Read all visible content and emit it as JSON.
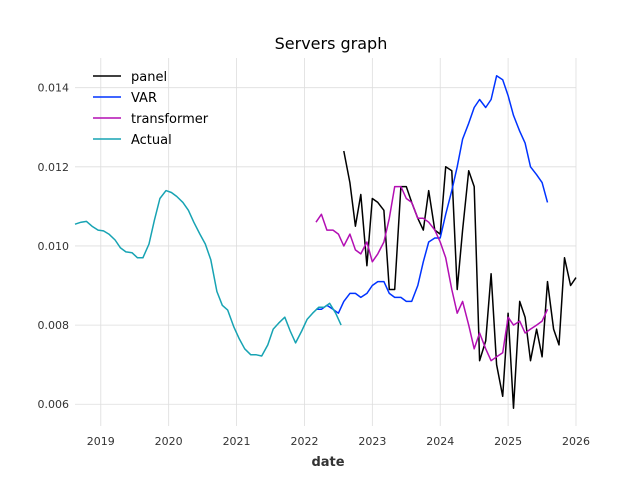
{
  "chart_data": {
    "type": "line",
    "title": "Servers graph",
    "xlabel": "date",
    "ylabel": "",
    "xlim": [
      2018.62,
      2026.0
    ],
    "ylim": [
      0.00545,
      0.01475
    ],
    "x_ticks": [
      2019,
      2020,
      2021,
      2022,
      2023,
      2024,
      2025,
      2026
    ],
    "x_tick_labels": [
      "2019",
      "2020",
      "2021",
      "2022",
      "2023",
      "2024",
      "2025",
      "2026"
    ],
    "y_ticks": [
      0.006,
      0.008,
      0.01,
      0.012,
      0.014
    ],
    "y_tick_labels": [
      "0.006",
      "0.008",
      "0.010",
      "0.012",
      "0.014"
    ],
    "grid": true,
    "legend_position": "top-left",
    "series": [
      {
        "name": "panel",
        "color": "#000000",
        "x": [
          2022.58,
          2022.67,
          2022.75,
          2022.83,
          2022.92,
          2023.0,
          2023.08,
          2023.17,
          2023.25,
          2023.33,
          2023.42,
          2023.5,
          2023.58,
          2023.67,
          2023.75,
          2023.83,
          2023.92,
          2024.0,
          2024.08,
          2024.17,
          2024.25,
          2024.33,
          2024.42,
          2024.5,
          2024.58,
          2024.67,
          2024.75,
          2024.83,
          2024.92,
          2025.0,
          2025.08,
          2025.17,
          2025.25,
          2025.33,
          2025.42,
          2025.5,
          2025.58,
          2025.67,
          2025.75,
          2025.83,
          2025.92,
          2026.0
        ],
        "values": [
          0.0124,
          0.0116,
          0.0105,
          0.0113,
          0.0095,
          0.0112,
          0.0111,
          0.0109,
          0.0089,
          0.0089,
          0.0115,
          0.0115,
          0.0111,
          0.0107,
          0.0104,
          0.0114,
          0.0104,
          0.0103,
          0.012,
          0.0119,
          0.0089,
          0.0104,
          0.0119,
          0.0115,
          0.0071,
          0.0076,
          0.0093,
          0.007,
          0.0062,
          0.0083,
          0.0059,
          0.0086,
          0.0082,
          0.0071,
          0.0079,
          0.0072,
          0.0091,
          0.0079,
          0.0075,
          0.0097,
          0.009,
          0.0092
        ]
      },
      {
        "name": "VAR",
        "color": "#0033ff",
        "x": [
          2022.17,
          2022.25,
          2022.33,
          2022.42,
          2022.5,
          2022.58,
          2022.67,
          2022.75,
          2022.83,
          2022.92,
          2023.0,
          2023.08,
          2023.17,
          2023.25,
          2023.33,
          2023.42,
          2023.5,
          2023.58,
          2023.67,
          2023.75,
          2023.83,
          2023.92,
          2024.0,
          2024.08,
          2024.17,
          2024.25,
          2024.33,
          2024.42,
          2024.5,
          2024.58,
          2024.67,
          2024.75,
          2024.83,
          2024.92,
          2025.0,
          2025.08,
          2025.17,
          2025.25,
          2025.33,
          2025.42,
          2025.5,
          2025.58
        ],
        "values": [
          0.0084,
          0.0084,
          0.0085,
          0.0084,
          0.0083,
          0.0086,
          0.0088,
          0.0088,
          0.0087,
          0.0088,
          0.009,
          0.0091,
          0.0091,
          0.0088,
          0.0087,
          0.0087,
          0.0086,
          0.0086,
          0.009,
          0.0096,
          0.0101,
          0.0102,
          0.0102,
          0.0108,
          0.0114,
          0.012,
          0.0127,
          0.0131,
          0.0135,
          0.0137,
          0.0135,
          0.0137,
          0.0143,
          0.0142,
          0.0138,
          0.0133,
          0.0129,
          0.0126,
          0.012,
          0.0118,
          0.0116,
          0.0111
        ]
      },
      {
        "name": "transformer",
        "color": "#b30fb3",
        "x": [
          2022.17,
          2022.25,
          2022.33,
          2022.42,
          2022.5,
          2022.58,
          2022.67,
          2022.75,
          2022.83,
          2022.92,
          2023.0,
          2023.08,
          2023.17,
          2023.25,
          2023.33,
          2023.42,
          2023.5,
          2023.58,
          2023.67,
          2023.75,
          2023.83,
          2023.92,
          2024.0,
          2024.08,
          2024.17,
          2024.25,
          2024.33,
          2024.42,
          2024.5,
          2024.58,
          2024.67,
          2024.75,
          2024.83,
          2024.92,
          2025.0,
          2025.08,
          2025.17,
          2025.25,
          2025.33,
          2025.42,
          2025.5,
          2025.58
        ],
        "values": [
          0.0106,
          0.0108,
          0.0104,
          0.0104,
          0.0103,
          0.01,
          0.0103,
          0.0099,
          0.0098,
          0.0101,
          0.0096,
          0.0098,
          0.0101,
          0.0107,
          0.0115,
          0.0115,
          0.0112,
          0.0111,
          0.0107,
          0.0107,
          0.0106,
          0.0104,
          0.0101,
          0.0097,
          0.0089,
          0.0083,
          0.0086,
          0.008,
          0.0074,
          0.0078,
          0.0074,
          0.0071,
          0.0072,
          0.0073,
          0.0082,
          0.008,
          0.0081,
          0.0078,
          0.0079,
          0.008,
          0.0081,
          0.0084
        ]
      },
      {
        "name": "Actual",
        "color": "#17a3b3",
        "x": [
          2018.62,
          2018.71,
          2018.79,
          2018.87,
          2018.96,
          2019.04,
          2019.12,
          2019.21,
          2019.29,
          2019.37,
          2019.46,
          2019.54,
          2019.62,
          2019.71,
          2019.79,
          2019.87,
          2019.96,
          2020.04,
          2020.12,
          2020.21,
          2020.29,
          2020.37,
          2020.46,
          2020.54,
          2020.62,
          2020.71,
          2020.79,
          2020.87,
          2020.96,
          2021.04,
          2021.12,
          2021.21,
          2021.29,
          2021.37,
          2021.46,
          2021.54,
          2021.62,
          2021.71,
          2021.79,
          2021.87,
          2021.96,
          2022.04,
          2022.12,
          2022.21,
          2022.29,
          2022.37,
          2022.46,
          2022.54
        ],
        "values": [
          0.01055,
          0.0106,
          0.01062,
          0.0105,
          0.0104,
          0.01038,
          0.0103,
          0.01015,
          0.00995,
          0.00985,
          0.00983,
          0.0097,
          0.0097,
          0.01005,
          0.01065,
          0.0112,
          0.0114,
          0.01135,
          0.01125,
          0.0111,
          0.0109,
          0.0106,
          0.0103,
          0.01005,
          0.00965,
          0.00885,
          0.0085,
          0.00838,
          0.00795,
          0.00765,
          0.0074,
          0.00725,
          0.00725,
          0.00722,
          0.0075,
          0.0079,
          0.00805,
          0.0082,
          0.00785,
          0.00755,
          0.00785,
          0.00815,
          0.0083,
          0.00845,
          0.00845,
          0.00855,
          0.0083,
          0.008
        ]
      }
    ]
  }
}
